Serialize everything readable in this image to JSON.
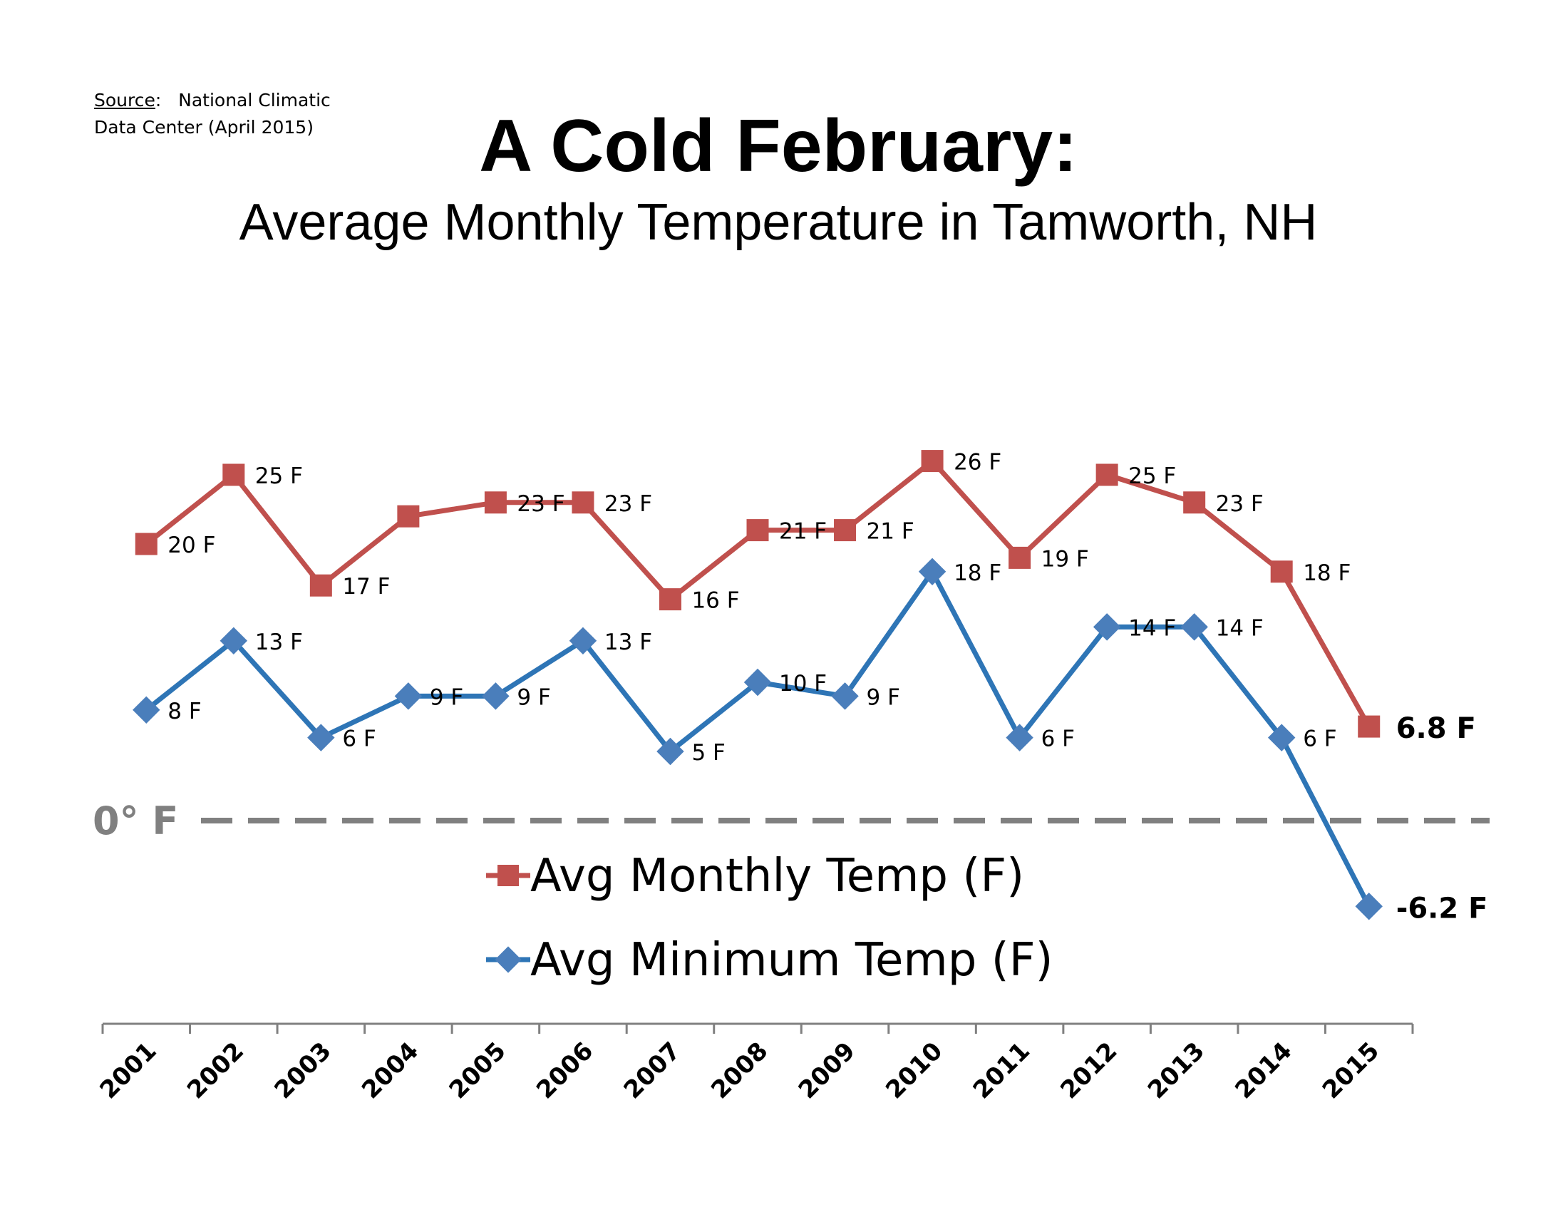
{
  "source": {
    "label": "Source",
    "line1": "National Climatic",
    "line2": "Data Center  (April 2015)"
  },
  "chart_data": {
    "type": "line",
    "title": "A Cold February:",
    "subtitle": "Average Monthly Temperature in Tamworth, NH",
    "categories": [
      "2001",
      "2002",
      "2003",
      "2004",
      "2005",
      "2006",
      "2007",
      "2008",
      "2009",
      "2010",
      "2011",
      "2012",
      "2013",
      "2014",
      "2015"
    ],
    "series": [
      {
        "name": "Avg Monthly Temp (F)",
        "color": "#c0504d",
        "marker": "square",
        "values": [
          20,
          25,
          17,
          22,
          23,
          23,
          16,
          21,
          21,
          26,
          19,
          25,
          23,
          18,
          6.8
        ],
        "labels": [
          "20 F",
          "25 F",
          "17 F",
          "",
          "23 F",
          "23 F",
          "16 F",
          "21 F",
          "21 F",
          "26 F",
          "19 F",
          "25 F",
          "23 F",
          "18 F",
          "6.8 F"
        ]
      },
      {
        "name": "Avg Minimum Temp (F)",
        "color": "#2e75b6",
        "marker": "diamond",
        "values": [
          8,
          13,
          6,
          9,
          9,
          13,
          5,
          10,
          9,
          18,
          6,
          14,
          14,
          6,
          -6.2
        ],
        "labels": [
          "8 F",
          "13 F",
          "6 F",
          "9 F",
          "9 F",
          "13 F",
          "5 F",
          "10 F",
          "9 F",
          "18 F",
          "6 F",
          "14 F",
          "14 F",
          "6 F",
          "-6.2 F"
        ]
      }
    ],
    "reference_line": {
      "value": 0,
      "label": "0° F",
      "color": "#808080",
      "style": "dashed"
    },
    "ylim": [
      -8,
      28
    ],
    "legend": "center"
  }
}
